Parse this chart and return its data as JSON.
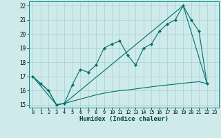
{
  "xlabel": "Humidex (Indice chaleur)",
  "xlim": [
    -0.5,
    23.5
  ],
  "ylim": [
    14.8,
    22.3
  ],
  "yticks": [
    15,
    16,
    17,
    18,
    19,
    20,
    21,
    22
  ],
  "xticks": [
    0,
    1,
    2,
    3,
    4,
    5,
    6,
    7,
    8,
    9,
    10,
    11,
    12,
    13,
    14,
    15,
    16,
    17,
    18,
    19,
    20,
    21,
    22,
    23
  ],
  "background_color": "#ceeaea",
  "grid_color": "#aed4d4",
  "line_color": "#006e6e",
  "line1_x": [
    0,
    1,
    2,
    3,
    4,
    5,
    6,
    7,
    8,
    9,
    10,
    11,
    12,
    13,
    14,
    15,
    16,
    17,
    18,
    19,
    20,
    21,
    22
  ],
  "line1_y": [
    17.0,
    16.5,
    16.0,
    15.0,
    15.1,
    16.4,
    17.5,
    17.3,
    17.8,
    19.0,
    19.3,
    19.5,
    18.5,
    17.8,
    19.0,
    19.3,
    20.2,
    20.7,
    21.0,
    22.0,
    21.0,
    20.2,
    16.5
  ],
  "line2_x": [
    0,
    1,
    2,
    3,
    4,
    5,
    6,
    7,
    8,
    9,
    10,
    11,
    12,
    13,
    14,
    15,
    16,
    17,
    18,
    19,
    20,
    21,
    22
  ],
  "line2_y": [
    17.0,
    16.5,
    16.0,
    15.0,
    15.1,
    15.25,
    15.4,
    15.55,
    15.7,
    15.82,
    15.92,
    16.0,
    16.05,
    16.12,
    16.2,
    16.27,
    16.34,
    16.4,
    16.46,
    16.52,
    16.58,
    16.63,
    16.5
  ],
  "line3_x": [
    0,
    3,
    4,
    19,
    22
  ],
  "line3_y": [
    17.0,
    15.0,
    15.1,
    22.0,
    16.5
  ]
}
